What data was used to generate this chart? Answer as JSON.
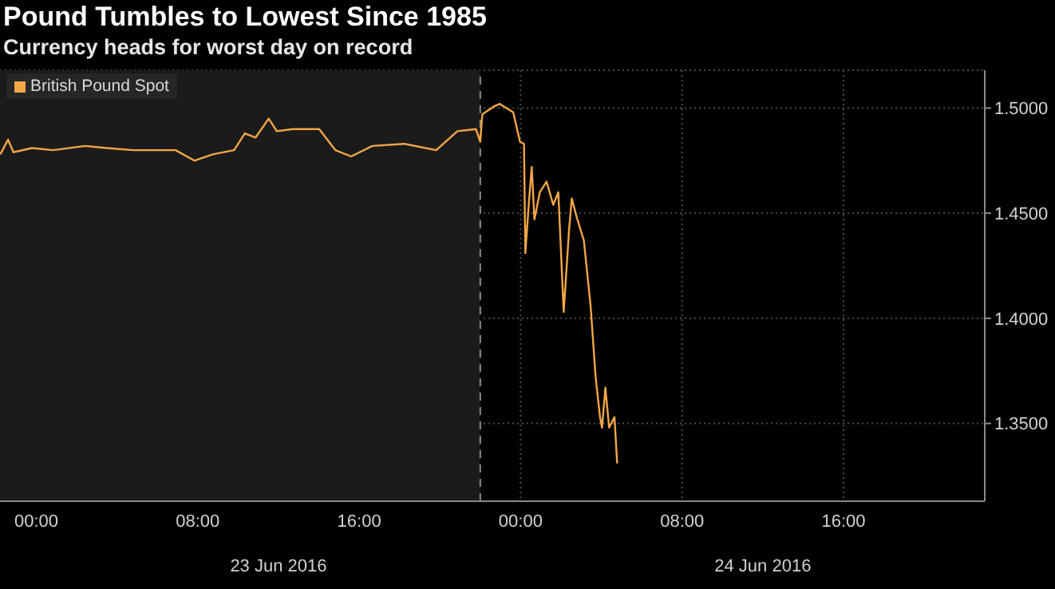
{
  "chart_data": {
    "type": "line",
    "title": "Pound Tumbles to Lowest Since 1985",
    "subtitle": "Currency heads for worst day on record",
    "series": [
      {
        "name": "British Pound Spot",
        "color": "#f2a646",
        "x": [
          "2016-06-22T22:13",
          "2016-06-22T22:36",
          "2016-06-22T22:52",
          "2016-06-22T23:47",
          "2016-06-23T00:50",
          "2016-06-23T02:25",
          "2016-06-23T03:29",
          "2016-06-23T04:48",
          "2016-06-23T06:54",
          "2016-06-23T07:50",
          "2016-06-23T08:45",
          "2016-06-23T09:48",
          "2016-06-23T10:20",
          "2016-06-23T10:52",
          "2016-06-23T11:31",
          "2016-06-23T11:55",
          "2016-06-23T12:42",
          "2016-06-23T14:01",
          "2016-06-23T14:49",
          "2016-06-23T15:36",
          "2016-06-23T16:39",
          "2016-06-23T18:14",
          "2016-06-23T19:49",
          "2016-06-23T20:52",
          "2016-06-23T21:47",
          "2016-06-23T22:00",
          "2016-06-23T22:06",
          "2016-06-23T22:43",
          "2016-06-23T22:58",
          "2016-06-23T23:38",
          "2016-06-23T23:58",
          "2016-06-24T00:10",
          "2016-06-24T00:14",
          "2016-06-24T00:25",
          "2016-06-24T00:33",
          "2016-06-24T00:41",
          "2016-06-24T00:57",
          "2016-06-24T01:17",
          "2016-06-24T01:37",
          "2016-06-24T01:52",
          "2016-06-24T02:08",
          "2016-06-24T02:24",
          "2016-06-24T02:32",
          "2016-06-24T02:47",
          "2016-06-24T03:08",
          "2016-06-24T03:28",
          "2016-06-24T03:43",
          "2016-06-24T03:56",
          "2016-06-24T04:02",
          "2016-06-24T04:12",
          "2016-06-24T04:23",
          "2016-06-24T04:39",
          "2016-06-24T04:47"
        ],
        "values": [
          1.478,
          1.485,
          1.479,
          1.481,
          1.48,
          1.482,
          1.481,
          1.48,
          1.48,
          1.475,
          1.478,
          1.48,
          1.488,
          1.486,
          1.495,
          1.489,
          1.49,
          1.49,
          1.48,
          1.477,
          1.482,
          1.483,
          1.48,
          1.489,
          1.49,
          1.484,
          1.497,
          1.501,
          1.502,
          1.498,
          1.484,
          1.483,
          1.431,
          1.456,
          1.472,
          1.447,
          1.46,
          1.465,
          1.454,
          1.46,
          1.403,
          1.442,
          1.457,
          1.448,
          1.437,
          1.406,
          1.372,
          1.353,
          1.348,
          1.367,
          1.348,
          1.353,
          1.331
        ]
      }
    ],
    "xlim": [
      "2016-06-22T22:12",
      "2016-06-24T23:00"
    ],
    "xticks": [
      {
        "value": "2016-06-23T00:00",
        "label": "00:00"
      },
      {
        "value": "2016-06-23T08:00",
        "label": "08:00"
      },
      {
        "value": "2016-06-23T16:00",
        "label": "16:00"
      },
      {
        "value": "2016-06-24T00:00",
        "label": "00:00"
      },
      {
        "value": "2016-06-24T08:00",
        "label": "08:00"
      },
      {
        "value": "2016-06-24T16:00",
        "label": "16:00"
      }
    ],
    "x2lim": [
      "2016-06-22T22:12",
      "2016-06-24T23:00"
    ],
    "x2ticks": [
      {
        "value": "2016-06-23T12:00",
        "label": "23 Jun 2016"
      },
      {
        "value": "2016-06-24T12:00",
        "label": "24 Jun 2016"
      }
    ],
    "ylim": [
      1.313,
      1.518
    ],
    "yticks": [
      {
        "value": 1.35,
        "label": "1.3500"
      },
      {
        "value": 1.4,
        "label": "1.4000"
      },
      {
        "value": 1.45,
        "label": "1.4500"
      },
      {
        "value": 1.5,
        "label": "1.5000"
      }
    ],
    "bands": [
      {
        "axis": "x",
        "from": "2016-06-22T22:12",
        "to": "2016-06-23T22:00",
        "color": "#1b1b1b"
      }
    ],
    "ref_lines": [
      {
        "axis": "x",
        "value": "2016-06-23T22:00",
        "color": "#8a8a8a",
        "line_style": "dashed"
      }
    ],
    "grid": true,
    "legend": "top left",
    "marker": "none",
    "line_style": "solid"
  }
}
